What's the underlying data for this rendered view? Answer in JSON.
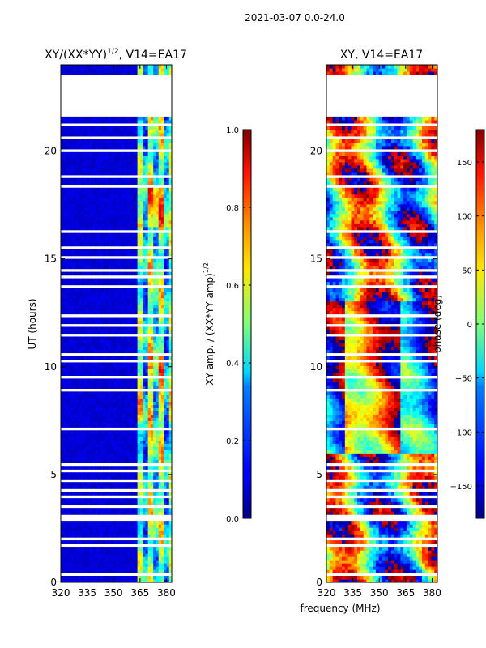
{
  "suptitle": "2021-03-07 0.0-24.0",
  "chart_data": [
    {
      "type": "heatmap",
      "title": "XY/(XX*YY)",
      "title_superscript": "1/2",
      "title_suffix": ", V14=EA17",
      "xlabel": "",
      "ylabel": "UT (hours)",
      "xlim": [
        320,
        383
      ],
      "ylim": [
        0,
        24
      ],
      "xticks": [
        320,
        335,
        350,
        365,
        380
      ],
      "yticks": [
        0,
        5,
        10,
        15,
        20
      ],
      "quantity": "normalized XY amplitude",
      "colormap": "jet",
      "colorbar": {
        "label": "XY amp. / (XX*YY amp)",
        "label_superscript": "1/2",
        "range": [
          0.0,
          1.0
        ],
        "ticks": [
          "0.0",
          "0.2",
          "0.4",
          "0.6",
          "0.8",
          "1.0"
        ]
      },
      "gaps_hours": [
        [
          21.6,
          23.6
        ],
        [
          21.15,
          21.25
        ],
        [
          20.6,
          20.7
        ],
        [
          19.9,
          20.1
        ],
        [
          19.3,
          19.4
        ],
        [
          18.75,
          18.85
        ],
        [
          18.3,
          18.4
        ],
        [
          16.2,
          16.4
        ],
        [
          15.5,
          15.6
        ],
        [
          15.0,
          15.1
        ],
        [
          14.4,
          14.5
        ],
        [
          14.1,
          14.2
        ],
        [
          13.7,
          13.8
        ],
        [
          13.0,
          13.1
        ],
        [
          12.3,
          12.4
        ],
        [
          11.8,
          12.0
        ],
        [
          11.4,
          11.5
        ],
        [
          10.5,
          10.6
        ],
        [
          10.2,
          10.3
        ],
        [
          9.5,
          9.6
        ],
        [
          8.9,
          9.0
        ],
        [
          8.5,
          8.6
        ],
        [
          8.2,
          8.3
        ],
        [
          7.6,
          7.7
        ],
        [
          7.1,
          7.2
        ],
        [
          6.7,
          6.8
        ],
        [
          6.4,
          6.5
        ],
        [
          5.95,
          6.05
        ],
        [
          5.4,
          5.5
        ],
        [
          5.1,
          5.2
        ],
        [
          4.6,
          4.8
        ],
        [
          4.2,
          4.3
        ],
        [
          3.9,
          4.0
        ],
        [
          3.5,
          3.6
        ],
        [
          2.8,
          3.1
        ],
        [
          2.0,
          2.1
        ],
        [
          1.7,
          1.8
        ],
        [
          1.3,
          1.4
        ],
        [
          1.0,
          1.1
        ],
        [
          0.7,
          0.8
        ],
        [
          0.35,
          0.45
        ],
        [
          0.1,
          0.2
        ]
      ],
      "band_columns_mhz": [
        364,
        367,
        370,
        373,
        376,
        379,
        382
      ],
      "band_column_levels": [
        0.4,
        0.2,
        0.5,
        0.3,
        0.5,
        0.2,
        0.4
      ]
    },
    {
      "type": "heatmap",
      "title": "XY, V14=EA17",
      "xlabel": "frequency (MHz)",
      "ylabel": "",
      "xlim": [
        320,
        383
      ],
      "ylim": [
        0,
        24
      ],
      "xticks": [
        320,
        335,
        350,
        365,
        380
      ],
      "yticks": [
        0,
        5,
        10,
        15,
        20
      ],
      "quantity": "XY phase",
      "colormap": "jet",
      "colorbar": {
        "label": "phase (deg)",
        "range": [
          -180,
          180
        ],
        "ticks": [
          "150",
          "100",
          "50",
          "0",
          "−50",
          "−100",
          "−150"
        ]
      }
    }
  ]
}
